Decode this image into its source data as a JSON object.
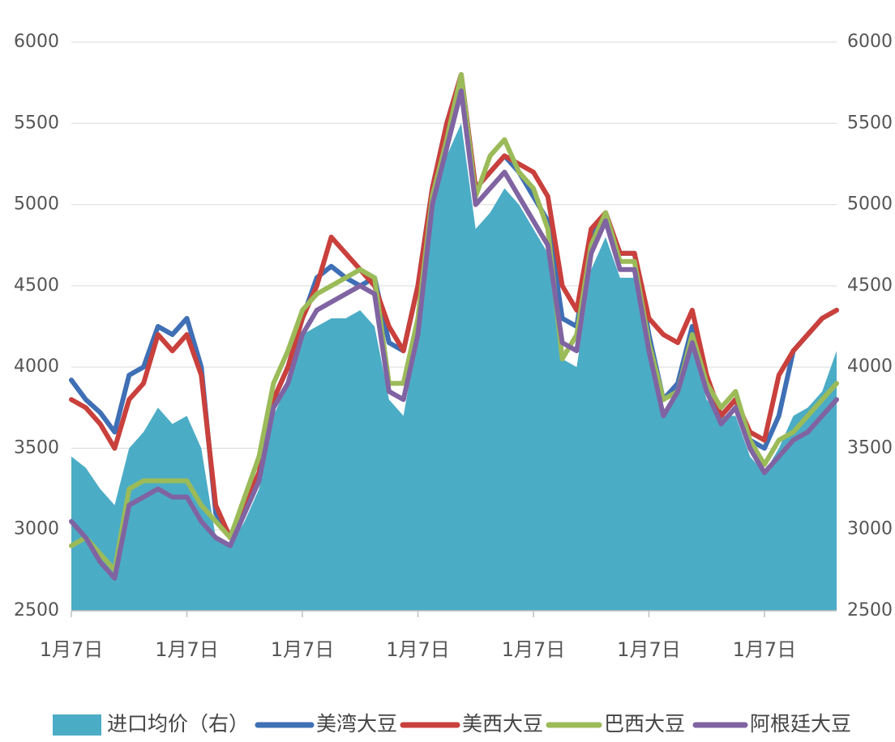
{
  "chart_data": {
    "type": "line",
    "categories": [
      "1月7日",
      null,
      null,
      null,
      null,
      null,
      null,
      null,
      "1月7日",
      null,
      null,
      null,
      null,
      null,
      null,
      null,
      "1月7日",
      null,
      null,
      null,
      null,
      null,
      null,
      null,
      "1月7日",
      null,
      null,
      null,
      null,
      null,
      null,
      null,
      "1月7日",
      null,
      null,
      null,
      null,
      null,
      null,
      null,
      "1月7日",
      null,
      null,
      null,
      null,
      null,
      null,
      null,
      "1月7日",
      null,
      null,
      null,
      null,
      null
    ],
    "series": [
      {
        "name": "进口均价（右）",
        "color": "#4bacc6",
        "style": "area",
        "axis": "y2",
        "values": [
          3450,
          3380,
          3250,
          3150,
          3500,
          3600,
          3750,
          3650,
          3700,
          3500,
          2950,
          2900,
          3050,
          3250,
          3700,
          3900,
          4200,
          4250,
          4300,
          4300,
          4350,
          4250,
          3800,
          3700,
          4200,
          5000,
          5300,
          5500,
          4850,
          4950,
          5100,
          5000,
          4850,
          4700,
          4050,
          4000,
          4600,
          4800,
          4550,
          4550,
          4100,
          3700,
          3850,
          4100,
          3800,
          3700,
          3700,
          3450,
          3350,
          3500,
          3700,
          3750,
          3850,
          4100
        ]
      },
      {
        "name": "美湾大豆",
        "color": "#3f6fb5",
        "values": [
          3920,
          3800,
          3720,
          3600,
          3950,
          4000,
          4250,
          4200,
          4300,
          4000,
          3100,
          2950,
          3150,
          3350,
          3800,
          4000,
          4300,
          4550,
          4620,
          4550,
          4500,
          4550,
          4150,
          4100,
          4500,
          5100,
          5500,
          5800,
          5100,
          5200,
          5300,
          5200,
          5050,
          4900,
          4300,
          4250,
          4800,
          4950,
          4700,
          4700,
          4200,
          3800,
          3900,
          4250,
          3900,
          3700,
          3800,
          3550,
          3500,
          3700,
          4100,
          4200,
          4300,
          4350
        ]
      },
      {
        "name": "美西大豆",
        "color": "#c9403c",
        "values": [
          3800,
          3750,
          3650,
          3500,
          3800,
          3900,
          4200,
          4100,
          4200,
          3950,
          3150,
          2950,
          3150,
          3350,
          3800,
          4000,
          4300,
          4500,
          4800,
          4700,
          4600,
          4500,
          4250,
          4100,
          4500,
          5100,
          5500,
          5800,
          5100,
          5200,
          5300,
          5250,
          5200,
          5050,
          4500,
          4350,
          4850,
          4950,
          4700,
          4700,
          4300,
          4200,
          4150,
          4350,
          3950,
          3700,
          3800,
          3600,
          3550,
          3950,
          4100,
          4200,
          4300,
          4350
        ]
      },
      {
        "name": "巴西大豆",
        "color": "#9bbb59",
        "values": [
          2900,
          2950,
          2850,
          2750,
          3250,
          3300,
          3300,
          3300,
          3300,
          3150,
          3050,
          2950,
          3200,
          3450,
          3900,
          4100,
          4350,
          4450,
          4500,
          4550,
          4600,
          4550,
          3900,
          3900,
          4300,
          5050,
          5400,
          5800,
          5050,
          5300,
          5400,
          5200,
          5100,
          4850,
          4050,
          4200,
          4750,
          4950,
          4650,
          4650,
          4150,
          3800,
          3850,
          4200,
          3900,
          3750,
          3850,
          3550,
          3400,
          3550,
          3600,
          3700,
          3800,
          3900
        ]
      },
      {
        "name": "阿根廷大豆",
        "color": "#8064a2",
        "values": [
          3050,
          2950,
          2800,
          2700,
          3150,
          3200,
          3250,
          3200,
          3200,
          3050,
          2950,
          2900,
          3100,
          3300,
          3750,
          3900,
          4200,
          4350,
          4400,
          4450,
          4500,
          4450,
          3850,
          3800,
          4200,
          5000,
          5350,
          5700,
          5000,
          5100,
          5200,
          5050,
          4900,
          4750,
          4150,
          4100,
          4700,
          4900,
          4600,
          4600,
          4100,
          3700,
          3850,
          4150,
          3850,
          3650,
          3750,
          3500,
          3350,
          3450,
          3550,
          3600,
          3700,
          3800
        ]
      }
    ],
    "ylim": [
      2500,
      6000
    ],
    "yticks": [
      2500,
      3000,
      3500,
      4000,
      4500,
      5000,
      5500,
      6000
    ],
    "y2lim": [
      2500,
      6000
    ],
    "y2ticks": [
      2500,
      3000,
      3500,
      4000,
      4500,
      5000,
      5500,
      6000
    ],
    "grid": true,
    "legend": "bottom"
  }
}
